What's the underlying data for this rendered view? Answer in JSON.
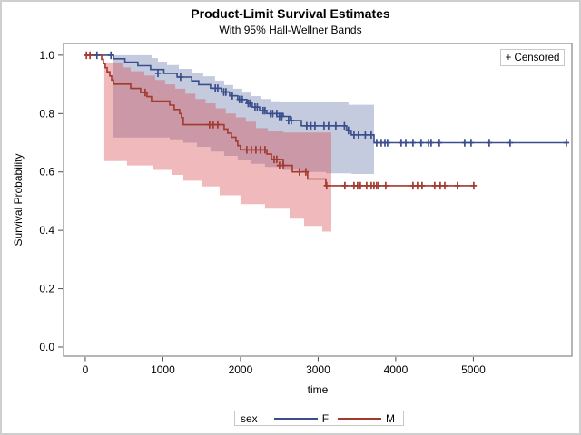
{
  "figure": {
    "title": "Product-Limit Survival Estimates",
    "subtitle": "With 95% Hall-Wellner Bands",
    "censored_note": "+ Censored"
  },
  "legend": {
    "title": "sex",
    "entries": [
      {
        "label": "F",
        "color": "#3a4e8c"
      },
      {
        "label": "M",
        "color": "#a23a2e"
      }
    ]
  },
  "colors": {
    "frame": "#9e9e9e",
    "tick": "#4d4d4d",
    "text": "#000000",
    "figure_border": "#cfcfcf",
    "legend_border": "#c8c8c8",
    "background": "#ffffff"
  },
  "chart_data": {
    "type": "line",
    "variant": "kaplan-meier-step-with-confidence-bands",
    "title": "Product-Limit Survival Estimates",
    "subtitle": "With 95% Hall-Wellner Bands",
    "xlabel": "time",
    "ylabel": "Survival Probability",
    "xlim": [
      -280,
      6270
    ],
    "ylim": [
      -0.031,
      1.04
    ],
    "xticks": {
      "values": [
        0,
        1000,
        2000,
        3000,
        4000,
        5000
      ],
      "labels": [
        "0",
        "1000",
        "2000",
        "3000",
        "4000",
        "5000"
      ]
    },
    "yticks": {
      "values": [
        0.0,
        0.2,
        0.4,
        0.6,
        0.8,
        1.0
      ],
      "labels": [
        "0.0",
        "0.2",
        "0.4",
        "0.6",
        "0.8",
        "1.0"
      ]
    },
    "grid": false,
    "legend_position": "bottom",
    "censored_marker": "plus",
    "series": [
      {
        "name": "F",
        "line_color": "#3a4e8c",
        "band_fill": "#445694",
        "band_opacity": 0.31,
        "end_time": 6210,
        "steps": [
          [
            0,
            1.0
          ],
          [
            363,
            0.988
          ],
          [
            511,
            0.976
          ],
          [
            678,
            0.964
          ],
          [
            842,
            0.951
          ],
          [
            1012,
            0.938
          ],
          [
            1183,
            0.925
          ],
          [
            1371,
            0.912
          ],
          [
            1462,
            0.899
          ],
          [
            1614,
            0.887
          ],
          [
            1754,
            0.874
          ],
          [
            1859,
            0.861
          ],
          [
            1964,
            0.848
          ],
          [
            2081,
            0.835
          ],
          [
            2152,
            0.822
          ],
          [
            2246,
            0.81
          ],
          [
            2339,
            0.8
          ],
          [
            2550,
            0.79
          ],
          [
            2643,
            0.776
          ],
          [
            2784,
            0.758
          ],
          [
            3368,
            0.742
          ],
          [
            3427,
            0.727
          ],
          [
            3720,
            0.7
          ]
        ],
        "censored": [
          [
            150,
            1.0
          ],
          [
            330,
            1.0
          ],
          [
            936,
            0.938
          ],
          [
            1228,
            0.925
          ],
          [
            1676,
            0.887
          ],
          [
            1707,
            0.887
          ],
          [
            1784,
            0.874
          ],
          [
            1813,
            0.874
          ],
          [
            1894,
            0.861
          ],
          [
            1987,
            0.848
          ],
          [
            2023,
            0.848
          ],
          [
            2099,
            0.835
          ],
          [
            2122,
            0.835
          ],
          [
            2187,
            0.822
          ],
          [
            2216,
            0.822
          ],
          [
            2292,
            0.81
          ],
          [
            2316,
            0.81
          ],
          [
            2386,
            0.8
          ],
          [
            2415,
            0.8
          ],
          [
            2468,
            0.8
          ],
          [
            2503,
            0.79
          ],
          [
            2532,
            0.79
          ],
          [
            2620,
            0.776
          ],
          [
            2655,
            0.776
          ],
          [
            2854,
            0.758
          ],
          [
            2907,
            0.758
          ],
          [
            2959,
            0.758
          ],
          [
            3076,
            0.758
          ],
          [
            3134,
            0.758
          ],
          [
            3228,
            0.758
          ],
          [
            3339,
            0.758
          ],
          [
            3390,
            0.742
          ],
          [
            3462,
            0.727
          ],
          [
            3520,
            0.727
          ],
          [
            3608,
            0.727
          ],
          [
            3684,
            0.727
          ],
          [
            3754,
            0.7
          ],
          [
            3813,
            0.7
          ],
          [
            3860,
            0.7
          ],
          [
            3895,
            0.7
          ],
          [
            4070,
            0.7
          ],
          [
            4129,
            0.7
          ],
          [
            4222,
            0.7
          ],
          [
            4327,
            0.7
          ],
          [
            4421,
            0.7
          ],
          [
            4456,
            0.7
          ],
          [
            4561,
            0.7
          ],
          [
            4889,
            0.7
          ],
          [
            4971,
            0.7
          ],
          [
            5205,
            0.7
          ],
          [
            5474,
            0.7
          ],
          [
            6199,
            0.7
          ]
        ],
        "band": {
          "start": 363,
          "end": 3720,
          "upper": [
            [
              363,
              1.0
            ],
            [
              854,
              0.99
            ],
            [
              936,
              0.978
            ],
            [
              1053,
              0.966
            ],
            [
              1205,
              0.953
            ],
            [
              1380,
              0.94
            ],
            [
              1520,
              0.928
            ],
            [
              1672,
              0.913
            ],
            [
              1789,
              0.898
            ],
            [
              1906,
              0.885
            ],
            [
              2023,
              0.872
            ],
            [
              2140,
              0.86
            ],
            [
              2257,
              0.85
            ],
            [
              2398,
              0.842
            ],
            [
              2500,
              0.84
            ],
            [
              3392,
              0.83
            ]
          ],
          "lower": [
            [
              363,
              0.718
            ],
            [
              1088,
              0.712
            ],
            [
              1263,
              0.7
            ],
            [
              1438,
              0.686
            ],
            [
              1614,
              0.67
            ],
            [
              1789,
              0.655
            ],
            [
              1964,
              0.64
            ],
            [
              2140,
              0.628
            ],
            [
              2316,
              0.617
            ],
            [
              2550,
              0.607
            ],
            [
              2784,
              0.6
            ],
            [
              3100,
              0.595
            ],
            [
              3430,
              0.593
            ]
          ]
        }
      },
      {
        "name": "M",
        "line_color": "#a23a2e",
        "band_fill": "#d43a40",
        "band_opacity": 0.35,
        "end_time": 5006,
        "steps": [
          [
            0,
            1.0
          ],
          [
            211,
            0.986
          ],
          [
            234,
            0.971
          ],
          [
            257,
            0.957
          ],
          [
            281,
            0.943
          ],
          [
            316,
            0.929
          ],
          [
            340,
            0.915
          ],
          [
            363,
            0.901
          ],
          [
            585,
            0.886
          ],
          [
            713,
            0.872
          ],
          [
            795,
            0.858
          ],
          [
            853,
            0.843
          ],
          [
            1088,
            0.829
          ],
          [
            1146,
            0.814
          ],
          [
            1216,
            0.8
          ],
          [
            1240,
            0.786
          ],
          [
            1263,
            0.762
          ],
          [
            1789,
            0.747
          ],
          [
            1836,
            0.733
          ],
          [
            1883,
            0.719
          ],
          [
            1941,
            0.705
          ],
          [
            1964,
            0.69
          ],
          [
            2000,
            0.676
          ],
          [
            2340,
            0.661
          ],
          [
            2398,
            0.643
          ],
          [
            2550,
            0.622
          ],
          [
            2667,
            0.6
          ],
          [
            2865,
            0.576
          ],
          [
            3099,
            0.553
          ]
        ],
        "censored": [
          [
            15,
            1.0
          ],
          [
            60,
            1.0
          ],
          [
            772,
            0.872
          ],
          [
            1602,
            0.762
          ],
          [
            1649,
            0.762
          ],
          [
            1707,
            0.762
          ],
          [
            2082,
            0.676
          ],
          [
            2140,
            0.676
          ],
          [
            2199,
            0.676
          ],
          [
            2257,
            0.676
          ],
          [
            2316,
            0.676
          ],
          [
            2433,
            0.643
          ],
          [
            2468,
            0.643
          ],
          [
            2503,
            0.622
          ],
          [
            2550,
            0.622
          ],
          [
            2760,
            0.6
          ],
          [
            2842,
            0.6
          ],
          [
            3110,
            0.553
          ],
          [
            3345,
            0.553
          ],
          [
            3462,
            0.553
          ],
          [
            3509,
            0.553
          ],
          [
            3544,
            0.553
          ],
          [
            3626,
            0.553
          ],
          [
            3684,
            0.553
          ],
          [
            3719,
            0.553
          ],
          [
            3754,
            0.553
          ],
          [
            3778,
            0.553
          ],
          [
            3871,
            0.553
          ],
          [
            4222,
            0.553
          ],
          [
            4281,
            0.553
          ],
          [
            4339,
            0.553
          ],
          [
            4503,
            0.553
          ],
          [
            4573,
            0.553
          ],
          [
            4632,
            0.553
          ],
          [
            4795,
            0.553
          ],
          [
            5006,
            0.553
          ]
        ],
        "band": {
          "start": 245,
          "end": 3170,
          "upper": [
            [
              245,
              0.975
            ],
            [
              480,
              0.958
            ],
            [
              585,
              0.945
            ],
            [
              760,
              0.93
            ],
            [
              900,
              0.915
            ],
            [
              1030,
              0.9
            ],
            [
              1160,
              0.885
            ],
            [
              1290,
              0.868
            ],
            [
              1420,
              0.85
            ],
            [
              1550,
              0.835
            ],
            [
              1680,
              0.818
            ],
            [
              1810,
              0.8
            ],
            [
              1940,
              0.787
            ],
            [
              2070,
              0.772
            ],
            [
              2200,
              0.75
            ],
            [
              2350,
              0.74
            ],
            [
              2550,
              0.735
            ]
          ],
          "lower": [
            [
              245,
              0.637
            ],
            [
              538,
              0.622
            ],
            [
              877,
              0.607
            ],
            [
              1123,
              0.59
            ],
            [
              1263,
              0.57
            ],
            [
              1497,
              0.55
            ],
            [
              1731,
              0.52
            ],
            [
              2000,
              0.49
            ],
            [
              2316,
              0.474
            ],
            [
              2632,
              0.44
            ],
            [
              2818,
              0.415
            ],
            [
              3053,
              0.396
            ]
          ]
        }
      }
    ]
  }
}
